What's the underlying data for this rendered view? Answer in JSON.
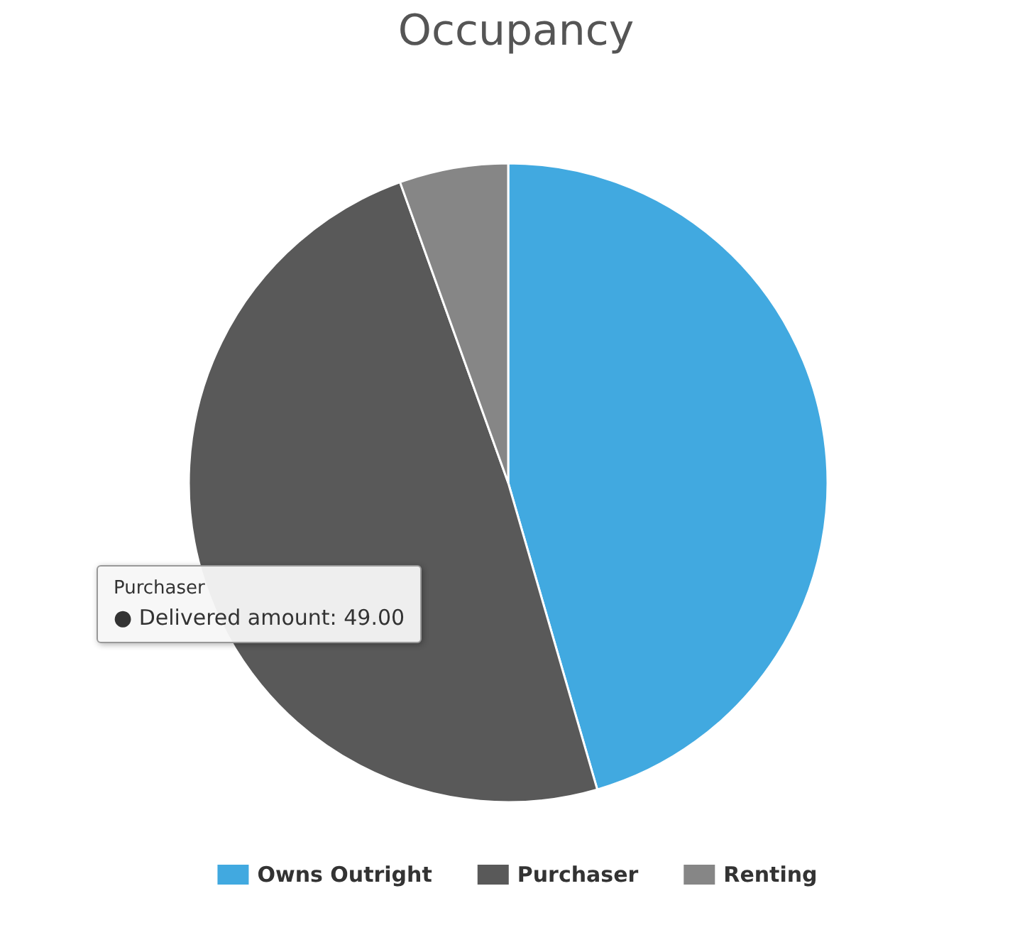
{
  "chart_data": {
    "type": "pie",
    "title": "Occupancy",
    "categories": [
      "Owns Outright",
      "Purchaser",
      "Renting"
    ],
    "values": [
      45.5,
      49,
      5.5
    ],
    "colors": [
      "#41a9e0",
      "#595959",
      "#868686"
    ],
    "legend": "bottom",
    "annotations": [
      "Purchaser",
      "● Delivered amount: 49.00"
    ]
  }
}
